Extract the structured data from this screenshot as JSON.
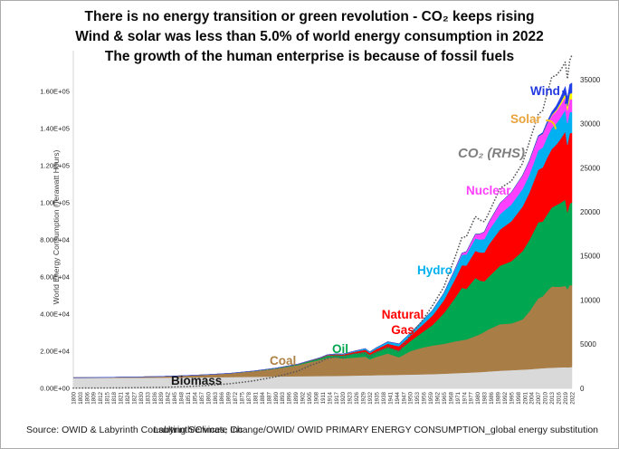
{
  "title": {
    "lines": [
      "There is no energy transition or green revolution - CO₂ keeps rising",
      "Wind & solar was less than 5.0% of world energy consumption in 2022",
      "The growth of the human enterprise is because of fossil fuels"
    ]
  },
  "footer": {
    "source_left": "Source:  OWID & Labyrinth Consulting Services, Inc",
    "source_right": "Labyrinth/Climate Change/OWID/ OWID PRIMARY ENERGY CONSUMPTION_global energy substitution"
  },
  "chart_data": {
    "type": "area",
    "stacked": true,
    "title": "There is no energy transition or green revolution - CO₂ keeps rising",
    "subtitle": "Wind & solar was less than 5.0% of world energy consumption in 2022",
    "subtitle2": "The growth of the human enterprise is because of fossil fuels",
    "y_axis_title": "World Energy Consumption (Terawatt Hours)",
    "grid": false,
    "legend_position": "inline-labels",
    "x_range": [
      1800,
      2022
    ],
    "left_axis": {
      "min": 0,
      "max": 160000,
      "tick_step": 20000,
      "tick_values": [
        0,
        20000,
        40000,
        60000,
        80000,
        100000,
        120000,
        140000,
        160000
      ],
      "ticks": [
        "0.00E+00",
        "2.00E+04",
        "4.00E+04",
        "6.00E+04",
        "8.00E+04",
        "1.00E+05",
        "1.20E+05",
        "1.40E+05",
        "1.60E+05"
      ]
    },
    "right_axis": {
      "min": 0,
      "max": 35000,
      "tick_step": 5000,
      "tick_values": [
        0,
        5000,
        10000,
        15000,
        20000,
        25000,
        30000,
        35000
      ],
      "ticks": [
        "0",
        "5000",
        "10000",
        "15000",
        "20000",
        "25000",
        "30000",
        "35000"
      ]
    },
    "x_ticks": [
      1800,
      1803,
      1806,
      1809,
      1812,
      1815,
      1818,
      1821,
      1824,
      1827,
      1830,
      1833,
      1836,
      1839,
      1842,
      1845,
      1848,
      1851,
      1854,
      1857,
      1860,
      1863,
      1866,
      1869,
      1872,
      1875,
      1878,
      1881,
      1884,
      1887,
      1890,
      1893,
      1896,
      1899,
      1902,
      1905,
      1908,
      1911,
      1914,
      1917,
      1920,
      1923,
      1926,
      1929,
      1932,
      1935,
      1938,
      1941,
      1944,
      1947,
      1950,
      1953,
      1956,
      1959,
      1962,
      1965,
      1968,
      1971,
      1974,
      1977,
      1980,
      1983,
      1986,
      1989,
      1992,
      1995,
      1998,
      2001,
      2004,
      2007,
      2010,
      2013,
      2016,
      2019,
      2022
    ],
    "years": [
      1800,
      1810,
      1820,
      1830,
      1840,
      1850,
      1860,
      1870,
      1880,
      1890,
      1900,
      1905,
      1910,
      1913,
      1917,
      1920,
      1925,
      1930,
      1932,
      1935,
      1940,
      1945,
      1950,
      1955,
      1960,
      1965,
      1970,
      1973,
      1975,
      1979,
      1981,
      1983,
      1985,
      1990,
      1995,
      2000,
      2003,
      2005,
      2007,
      2009,
      2011,
      2013,
      2015,
      2017,
      2019,
      2020,
      2021,
      2022
    ],
    "series": [
      {
        "id": "biomass",
        "name": "Biomass",
        "color": "#d9d9d9",
        "values": [
          5600,
          5650,
          5700,
          5750,
          5800,
          5900,
          6000,
          6100,
          6250,
          6400,
          6550,
          6600,
          6650,
          6700,
          6750,
          6800,
          6900,
          7000,
          7000,
          7100,
          7200,
          7300,
          7400,
          7550,
          7700,
          7900,
          8200,
          8350,
          8450,
          8700,
          8800,
          8950,
          9100,
          9500,
          9800,
          10100,
          10300,
          10500,
          10700,
          10900,
          11000,
          11100,
          11200,
          11300,
          11400,
          11300,
          11400,
          11500
        ]
      },
      {
        "id": "coal",
        "name": "Coal",
        "color": "#a87d46",
        "values": [
          150,
          220,
          320,
          450,
          650,
          950,
          1400,
          2000,
          2900,
          4200,
          6000,
          7400,
          8700,
          9800,
          9900,
          9300,
          9700,
          10100,
          8600,
          9900,
          11600,
          9500,
          12600,
          14300,
          15400,
          16100,
          17100,
          17600,
          17900,
          19500,
          20300,
          21500,
          22800,
          25100,
          25200,
          27000,
          31000,
          34500,
          37800,
          38700,
          41500,
          43800,
          43600,
          43500,
          43800,
          42100,
          44300,
          44000
        ]
      },
      {
        "id": "oil",
        "name": "Oil",
        "color": "#00a650",
        "values": [
          0,
          0,
          0,
          0,
          2,
          5,
          12,
          60,
          150,
          250,
          400,
          650,
          900,
          1100,
          1300,
          1600,
          2200,
          2600,
          2400,
          2900,
          3300,
          3600,
          5400,
          8000,
          11100,
          16500,
          23500,
          28300,
          27200,
          31300,
          29000,
          27200,
          28300,
          31500,
          33500,
          36800,
          38500,
          39600,
          41000,
          40300,
          41300,
          42500,
          43900,
          45200,
          46500,
          41500,
          43700,
          44800
        ]
      },
      {
        "id": "natural-gas",
        "name": "Natural Gas",
        "color": "#ff0000",
        "values": [
          0,
          0,
          0,
          0,
          0,
          0,
          0,
          5,
          10,
          30,
          60,
          110,
          200,
          300,
          400,
          500,
          800,
          1100,
          1050,
          1300,
          1900,
          2300,
          2800,
          3800,
          5100,
          6900,
          10100,
          12100,
          12600,
          14600,
          15100,
          15500,
          17300,
          19500,
          21500,
          24000,
          25500,
          26900,
          28300,
          29100,
          30600,
          31600,
          32500,
          34500,
          36700,
          36300,
          38000,
          37400
        ]
      },
      {
        "id": "hydro",
        "name": "Hydro",
        "color": "#00b0f0",
        "values": [
          0,
          0,
          0,
          0,
          0,
          0,
          0,
          2,
          5,
          15,
          40,
          80,
          130,
          180,
          250,
          300,
          450,
          600,
          650,
          800,
          1100,
          1300,
          1600,
          2200,
          2900,
          3900,
          5000,
          5600,
          6000,
          6700,
          7000,
          7300,
          7600,
          8300,
          9000,
          9500,
          9700,
          10000,
          10400,
          10800,
          11100,
          11300,
          11400,
          11500,
          11600,
          11700,
          11500,
          11300
        ]
      },
      {
        "id": "nuclear",
        "name": "Nuclear",
        "color": "#ff40ff",
        "values": [
          0,
          0,
          0,
          0,
          0,
          0,
          0,
          0,
          0,
          0,
          0,
          0,
          0,
          0,
          0,
          0,
          0,
          0,
          0,
          0,
          0,
          0,
          0,
          30,
          60,
          70,
          500,
          1000,
          1500,
          2300,
          3000,
          3900,
          4500,
          6000,
          6600,
          7300,
          7400,
          7600,
          7500,
          7200,
          7000,
          6600,
          6700,
          6900,
          7000,
          6800,
          7000,
          6700
        ]
      },
      {
        "id": "solar",
        "name": "Solar",
        "color": "#ffff00",
        "values": [
          0,
          0,
          0,
          0,
          0,
          0,
          0,
          0,
          0,
          0,
          0,
          0,
          0,
          0,
          0,
          0,
          0,
          0,
          0,
          0,
          0,
          0,
          0,
          0,
          0,
          0,
          0,
          0,
          0,
          0,
          0,
          0,
          0,
          0,
          0,
          0,
          10,
          30,
          60,
          100,
          170,
          350,
          680,
          1200,
          1900,
          2300,
          2900,
          3400
        ]
      },
      {
        "id": "wind",
        "name": "Wind",
        "color": "#2240e8",
        "values": [
          0,
          0,
          0,
          0,
          0,
          0,
          0,
          0,
          0,
          0,
          0,
          0,
          0,
          0,
          0,
          0,
          0,
          0,
          0,
          0,
          0,
          0,
          0,
          0,
          0,
          0,
          0,
          0,
          0,
          0,
          0,
          0,
          0,
          0,
          20,
          80,
          160,
          270,
          450,
          750,
          1150,
          1700,
          2200,
          2900,
          3800,
          4300,
          5000,
          5500
        ]
      }
    ],
    "co2": {
      "name": "CO₂ (RHS)",
      "axis": "right",
      "style": "dotted",
      "color": "#595959",
      "values": [
        30,
        40,
        55,
        80,
        110,
        200,
        340,
        530,
        840,
        1300,
        1950,
        2550,
        3000,
        3400,
        3600,
        3500,
        3950,
        3950,
        3500,
        4050,
        4750,
        4150,
        6000,
        7550,
        9400,
        11500,
        14900,
        17100,
        17200,
        19500,
        19100,
        18900,
        19900,
        22700,
        23500,
        25500,
        27900,
        29500,
        31100,
        31500,
        33500,
        35300,
        35500,
        36100,
        37000,
        35100,
        37200,
        37800
      ]
    },
    "labels": [
      {
        "text": "Wind",
        "color": "#2239df"
      },
      {
        "text": "Solar",
        "color": "#e8a33b"
      },
      {
        "text": "CO₂ (RHS)",
        "color": "#808080"
      },
      {
        "text": "Nuclear",
        "color": "#ff40ff"
      },
      {
        "text": "Hydro",
        "color": "#00b0f0"
      },
      {
        "text": "Natural Gas",
        "color": "#ff0000"
      },
      {
        "text": "Oil",
        "color": "#00a650"
      },
      {
        "text": "Coal",
        "color": "#ad8146"
      },
      {
        "text": "Biomass",
        "color": "#1a1a1a"
      }
    ]
  }
}
